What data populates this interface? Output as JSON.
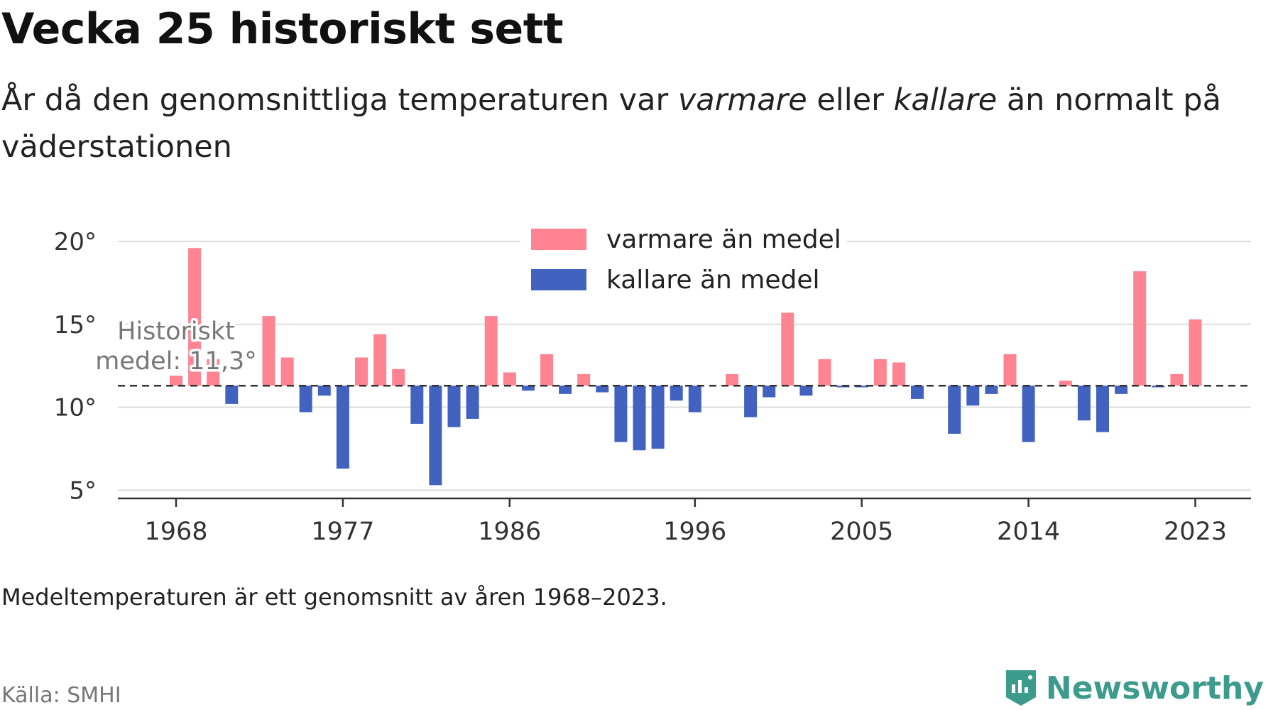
{
  "header": {
    "title": "Vecka 25 historiskt sett",
    "subtitle_pre": "År då den genomsnittliga temperaturen var ",
    "subtitle_warm": "varmare",
    "subtitle_mid": " eller ",
    "subtitle_cold": "kallare",
    "subtitle_post": " än normalt på väderstationen"
  },
  "footer": {
    "note": "Medeltemperaturen är ett genomsnitt av åren 1968–2023.",
    "source": "Källa: SMHI",
    "brand": "Newsworthy"
  },
  "colors": {
    "warm": "#ff8391",
    "cold": "#4262c0",
    "grid": "#dddddd",
    "axis": "#333333",
    "brand": "#3d9b8e"
  },
  "chart_data": {
    "type": "bar",
    "baseline": 11.3,
    "baseline_label_line1": "Historiskt",
    "baseline_label_line2": "medel: 11,3°",
    "legend": [
      {
        "name": "varmare än medel",
        "color": "#ff8391"
      },
      {
        "name": "kallare än medel",
        "color": "#4262c0"
      }
    ],
    "ylim": [
      4.5,
      21.5
    ],
    "yticks": [
      5,
      10,
      15,
      20
    ],
    "ytick_labels": [
      "5°",
      "10°",
      "15°",
      "20°"
    ],
    "xticks": [
      1968,
      1977,
      1986,
      1996,
      2005,
      2014,
      2023
    ],
    "xtick_labels": [
      "1968",
      "1977",
      "1986",
      "1996",
      "2005",
      "2014",
      "2023"
    ],
    "years": [
      1968,
      1969,
      1970,
      1971,
      1972,
      1973,
      1974,
      1975,
      1976,
      1977,
      1978,
      1979,
      1980,
      1981,
      1982,
      1983,
      1984,
      1985,
      1986,
      1987,
      1988,
      1989,
      1990,
      1991,
      1992,
      1993,
      1994,
      1995,
      1996,
      1997,
      1998,
      1999,
      2000,
      2001,
      2002,
      2003,
      2004,
      2005,
      2006,
      2007,
      2008,
      2009,
      2010,
      2011,
      2012,
      2013,
      2014,
      2015,
      2016,
      2017,
      2018,
      2019,
      2020,
      2021,
      2022,
      2023
    ],
    "values": [
      11.9,
      19.6,
      12.9,
      10.2,
      null,
      15.5,
      13.0,
      9.7,
      10.7,
      6.3,
      13.0,
      14.4,
      12.3,
      9.0,
      5.3,
      8.8,
      9.3,
      15.5,
      12.1,
      11.0,
      13.2,
      10.8,
      12.0,
      10.9,
      7.9,
      7.4,
      7.5,
      10.4,
      9.7,
      null,
      12.0,
      9.4,
      10.6,
      15.7,
      10.7,
      12.9,
      11.2,
      11.2,
      12.9,
      12.7,
      10.5,
      null,
      8.4,
      10.1,
      10.8,
      13.2,
      7.9,
      null,
      11.6,
      9.2,
      8.5,
      10.8,
      18.2,
      11.2,
      12.0,
      15.3
    ]
  }
}
